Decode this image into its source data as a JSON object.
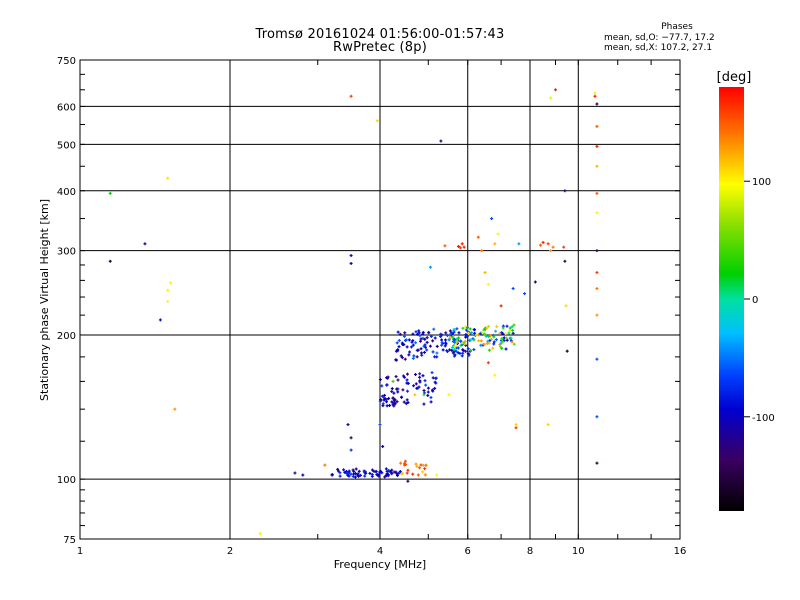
{
  "chart_data": {
    "type": "scatter",
    "title": "Tromsø 20161024 01:56:00-01:57:43",
    "subtitle": "RwPretec (8p)",
    "xlabel": "Frequency [MHz]",
    "ylabel": "Stationary phase Virtual Height [km]",
    "x_scale": "log",
    "y_scale": "log",
    "xlim": [
      1,
      16
    ],
    "ylim": [
      75,
      750
    ],
    "x_ticks": [
      1,
      2,
      4,
      6,
      8,
      10,
      16
    ],
    "y_ticks": [
      75,
      100,
      200,
      300,
      400,
      500,
      600,
      750
    ],
    "grid": true,
    "colorbar": {
      "label": "[deg]",
      "range": [
        -180,
        180
      ],
      "ticks": [
        100,
        0,
        -100
      ]
    },
    "annotation": {
      "heading": "Phases",
      "line1": "mean, sd,O: −77.7, 17.2",
      "line2": "mean, sd,X: 107.2, 27.1"
    },
    "series": [
      {
        "points": [
          [
            1.15,
            395,
            20
          ],
          [
            1.15,
            285,
            -155
          ],
          [
            1.35,
            310,
            -115
          ],
          [
            1.45,
            215,
            -85
          ],
          [
            1.5,
            425,
            105
          ],
          [
            1.5,
            248,
            100
          ],
          [
            1.5,
            235,
            95
          ],
          [
            1.52,
            257,
            100
          ],
          [
            1.55,
            140,
            130
          ],
          [
            2.3,
            77,
            100
          ],
          [
            2.7,
            103,
            -130
          ],
          [
            2.8,
            102,
            -110
          ],
          [
            3.1,
            107,
            140
          ],
          [
            3.3,
            104,
            -120
          ],
          [
            3.45,
            130,
            -110
          ],
          [
            3.5,
            122,
            -130
          ],
          [
            3.5,
            115,
            -70
          ],
          [
            3.5,
            630,
            160
          ],
          [
            3.5,
            293,
            -90
          ],
          [
            3.5,
            282,
            -120
          ],
          [
            3.95,
            560,
            110
          ],
          [
            4.0,
            130,
            -60
          ],
          [
            4.05,
            117,
            -100
          ],
          [
            4.25,
            160,
            40
          ],
          [
            4.4,
            108,
            140
          ],
          [
            4.5,
            109,
            150
          ],
          [
            4.55,
            99,
            -140
          ],
          [
            4.7,
            150,
            115
          ],
          [
            4.9,
            150,
            45
          ],
          [
            4.95,
            107,
            130
          ],
          [
            5.0,
            152,
            -90
          ],
          [
            5.05,
            277,
            -40
          ],
          [
            5.2,
            102,
            100
          ],
          [
            5.3,
            508,
            -130
          ],
          [
            5.4,
            307,
            150
          ],
          [
            5.5,
            150,
            100
          ],
          [
            5.75,
            306,
            175
          ],
          [
            5.8,
            304,
            160
          ],
          [
            5.85,
            310,
            170
          ],
          [
            5.9,
            305,
            170
          ],
          [
            6.3,
            320,
            150
          ],
          [
            6.4,
            300,
            140
          ],
          [
            6.5,
            270,
            120
          ],
          [
            6.6,
            255,
            100
          ],
          [
            6.6,
            175,
            160
          ],
          [
            6.7,
            350,
            -60
          ],
          [
            6.8,
            310,
            120
          ],
          [
            6.8,
            165,
            100
          ],
          [
            6.9,
            325,
            100
          ],
          [
            7.0,
            230,
            170
          ],
          [
            7.2,
            195,
            -100
          ],
          [
            7.4,
            250,
            -60
          ],
          [
            7.5,
            130,
            110
          ],
          [
            7.5,
            128,
            160
          ],
          [
            7.6,
            310,
            -40
          ],
          [
            7.8,
            244,
            -60
          ],
          [
            8.2,
            258,
            -120
          ],
          [
            8.4,
            308,
            150
          ],
          [
            8.5,
            312,
            170
          ],
          [
            8.7,
            310,
            160
          ],
          [
            8.8,
            300,
            130
          ],
          [
            8.9,
            305,
            140
          ],
          [
            8.7,
            130,
            110
          ],
          [
            8.8,
            625,
            90
          ],
          [
            9.0,
            650,
            170
          ],
          [
            9.35,
            305,
            160
          ],
          [
            9.4,
            400,
            -130
          ],
          [
            9.4,
            285,
            -140
          ],
          [
            9.45,
            230,
            110
          ],
          [
            9.5,
            185,
            -160
          ],
          [
            10.8,
            640,
            90
          ],
          [
            10.8,
            630,
            170
          ],
          [
            10.9,
            607,
            -150
          ],
          [
            10.9,
            545,
            150
          ],
          [
            10.9,
            495,
            170
          ],
          [
            10.9,
            450,
            120
          ],
          [
            10.9,
            395,
            150
          ],
          [
            10.9,
            360,
            100
          ],
          [
            10.9,
            300,
            -140
          ],
          [
            10.9,
            270,
            160
          ],
          [
            10.9,
            250,
            140
          ],
          [
            10.9,
            220,
            130
          ],
          [
            10.9,
            178,
            -60
          ],
          [
            10.9,
            135,
            -60
          ],
          [
            10.9,
            108,
            -150
          ]
        ]
      }
    ],
    "clusters": [
      {
        "x_range": [
          3.2,
          4.4
        ],
        "y_center": 103,
        "y_spread": 0.02,
        "phase_center": -100,
        "phase_spread": 30,
        "count": 70
      },
      {
        "x_range": [
          4.3,
          4.95
        ],
        "y_center": 105,
        "y_spread": 0.03,
        "phase_center": 140,
        "phase_spread": 30,
        "count": 18
      },
      {
        "x_range": [
          4.0,
          5.2
        ],
        "y_center": 155,
        "y_spread": 0.08,
        "phase_center": -100,
        "phase_spread": 40,
        "count": 70
      },
      {
        "x_range": [
          4.3,
          6.2
        ],
        "y_center": 190,
        "y_spread": 0.07,
        "phase_center": -90,
        "phase_spread": 40,
        "count": 130
      },
      {
        "x_range": [
          5.5,
          7.5
        ],
        "y_center": 195,
        "y_spread": 0.06,
        "phase_center": 20,
        "phase_spread": 120,
        "count": 110
      },
      {
        "x_range": [
          4.0,
          4.3
        ],
        "y_center": 145,
        "y_spread": 0.02,
        "phase_center": -110,
        "phase_spread": 20,
        "count": 15
      }
    ]
  }
}
